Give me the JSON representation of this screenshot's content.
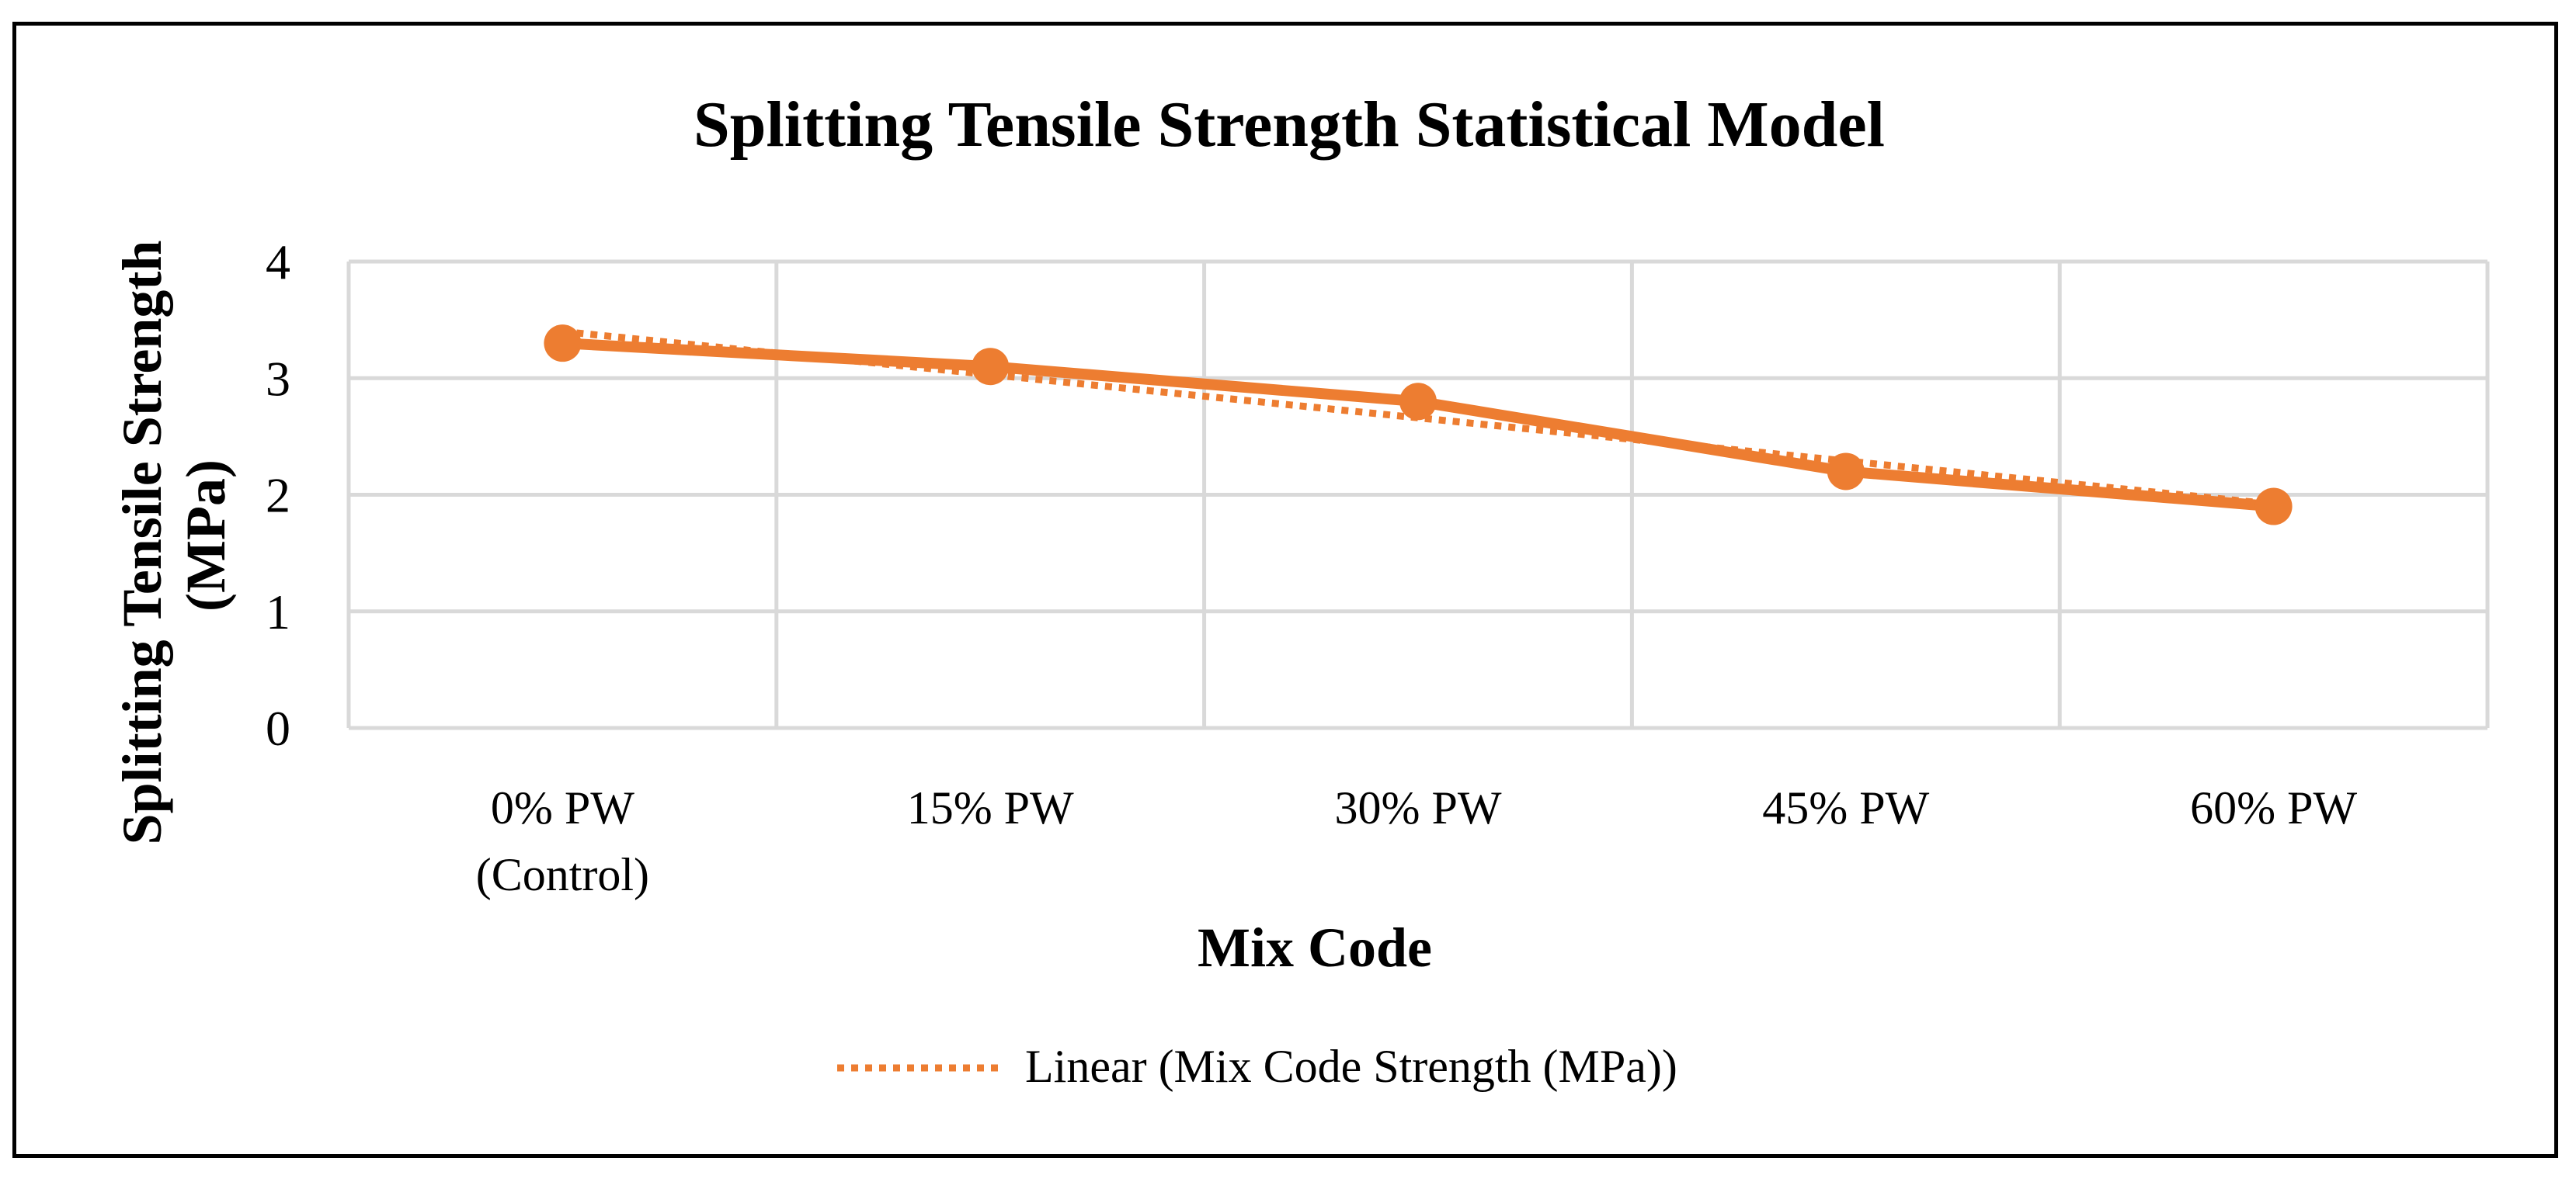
{
  "chart_data": {
    "type": "line",
    "title": "Splitting Tensile Strength Statistical Model",
    "xlabel": "Mix Code",
    "ylabel_lines": [
      "Splitting Tensile Strength",
      "(MPa)"
    ],
    "categories": [
      [
        "0% PW",
        "(Control)"
      ],
      [
        "15% PW"
      ],
      [
        "30% PW"
      ],
      [
        "45% PW"
      ],
      [
        "60% PW"
      ]
    ],
    "series": [
      {
        "name": "Mix Code Strength (MPa)",
        "values": [
          3.3,
          3.1,
          2.8,
          2.2,
          1.9
        ],
        "color": "#ED7D31",
        "markers": true
      }
    ],
    "trendline": {
      "name": "Linear (Mix Code Strength (MPa))",
      "type": "linear",
      "of_series": 0,
      "style": "dotted",
      "color": "#ED7D31"
    },
    "ylim": [
      0,
      4
    ],
    "yticks": [
      "0",
      "1",
      "2",
      "3",
      "4"
    ],
    "grid": true,
    "legend_position": "bottom",
    "colors": {
      "grid": "#D9D9D9",
      "text": "#000000",
      "frame": "#000000"
    }
  }
}
